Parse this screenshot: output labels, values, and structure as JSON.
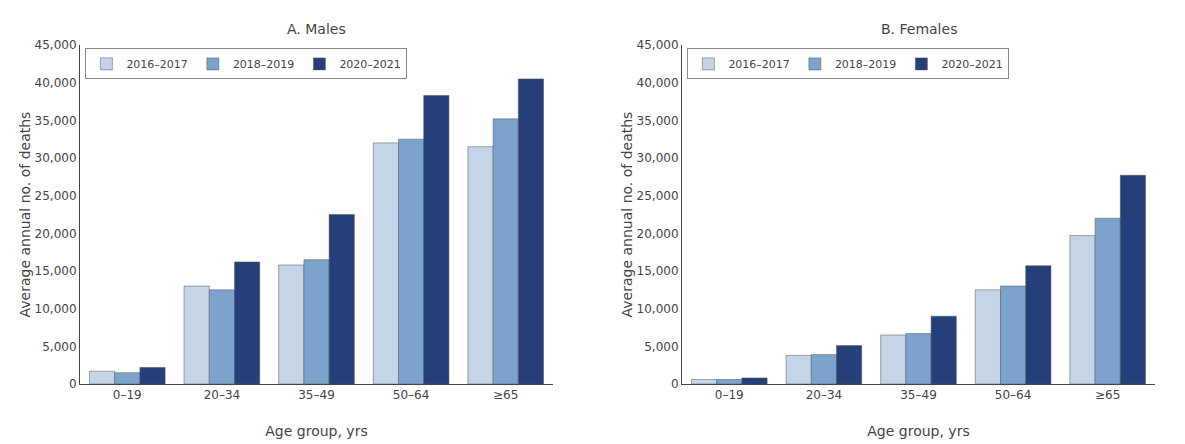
{
  "chart_data": [
    {
      "type": "bar",
      "title": "A. Males",
      "xlabel": "Age group, yrs",
      "ylabel": "Average annual no. of deaths",
      "categories": [
        "0–19",
        "20–34",
        "35–49",
        "50–64",
        "≥65"
      ],
      "series": [
        {
          "name": "2016–2017",
          "color": "#c5d5e8",
          "values": [
            1700,
            13000,
            15800,
            32000,
            31500
          ]
        },
        {
          "name": "2018–2019",
          "color": "#7ba3cc",
          "values": [
            1500,
            12500,
            16500,
            32500,
            35200
          ]
        },
        {
          "name": "2020–2021",
          "color": "#253f7a",
          "values": [
            2200,
            16200,
            22500,
            38300,
            40500
          ]
        }
      ],
      "ylim": [
        0,
        45000
      ],
      "yticks": [
        0,
        {
          "value": 5000,
          "label": "5,000"
        },
        {
          "value": 10000,
          "label": "10,000"
        },
        {
          "value": 15000,
          "label": "15,000"
        },
        {
          "value": 20000,
          "label": "20,000"
        },
        {
          "value": 25000,
          "label": "25,000"
        },
        {
          "value": 30000,
          "label": "30,000"
        },
        {
          "value": 35000,
          "label": "35,000"
        },
        {
          "value": 40000,
          "label": "40,000"
        },
        {
          "value": 45000,
          "label": "45,000"
        }
      ],
      "grid": false,
      "legend": "upper left"
    },
    {
      "type": "bar",
      "title": "B. Females",
      "xlabel": "Age group, yrs",
      "ylabel": "Average annual no. of deaths",
      "categories": [
        "0–19",
        "20–34",
        "35–49",
        "50–64",
        "≥65"
      ],
      "series": [
        {
          "name": "2016–2017",
          "color": "#c5d5e8",
          "values": [
            600,
            3800,
            6500,
            12500,
            19700
          ]
        },
        {
          "name": "2018–2019",
          "color": "#7ba3cc",
          "values": [
            600,
            3900,
            6700,
            13000,
            22000
          ]
        },
        {
          "name": "2020–2021",
          "color": "#253f7a",
          "values": [
            800,
            5100,
            9000,
            15700,
            27700
          ]
        }
      ],
      "ylim": [
        0,
        45000
      ],
      "yticks": [
        0,
        {
          "value": 5000,
          "label": "5,000"
        },
        {
          "value": 10000,
          "label": "10,000"
        },
        {
          "value": 15000,
          "label": "15,000"
        },
        {
          "value": 20000,
          "label": "20,000"
        },
        {
          "value": 25000,
          "label": "25,000"
        },
        {
          "value": 30000,
          "label": "30,000"
        },
        {
          "value": 35000,
          "label": "35,000"
        },
        {
          "value": 40000,
          "label": "40,000"
        },
        {
          "value": 45000,
          "label": "45,000"
        }
      ],
      "grid": false,
      "legend": "upper left"
    }
  ]
}
